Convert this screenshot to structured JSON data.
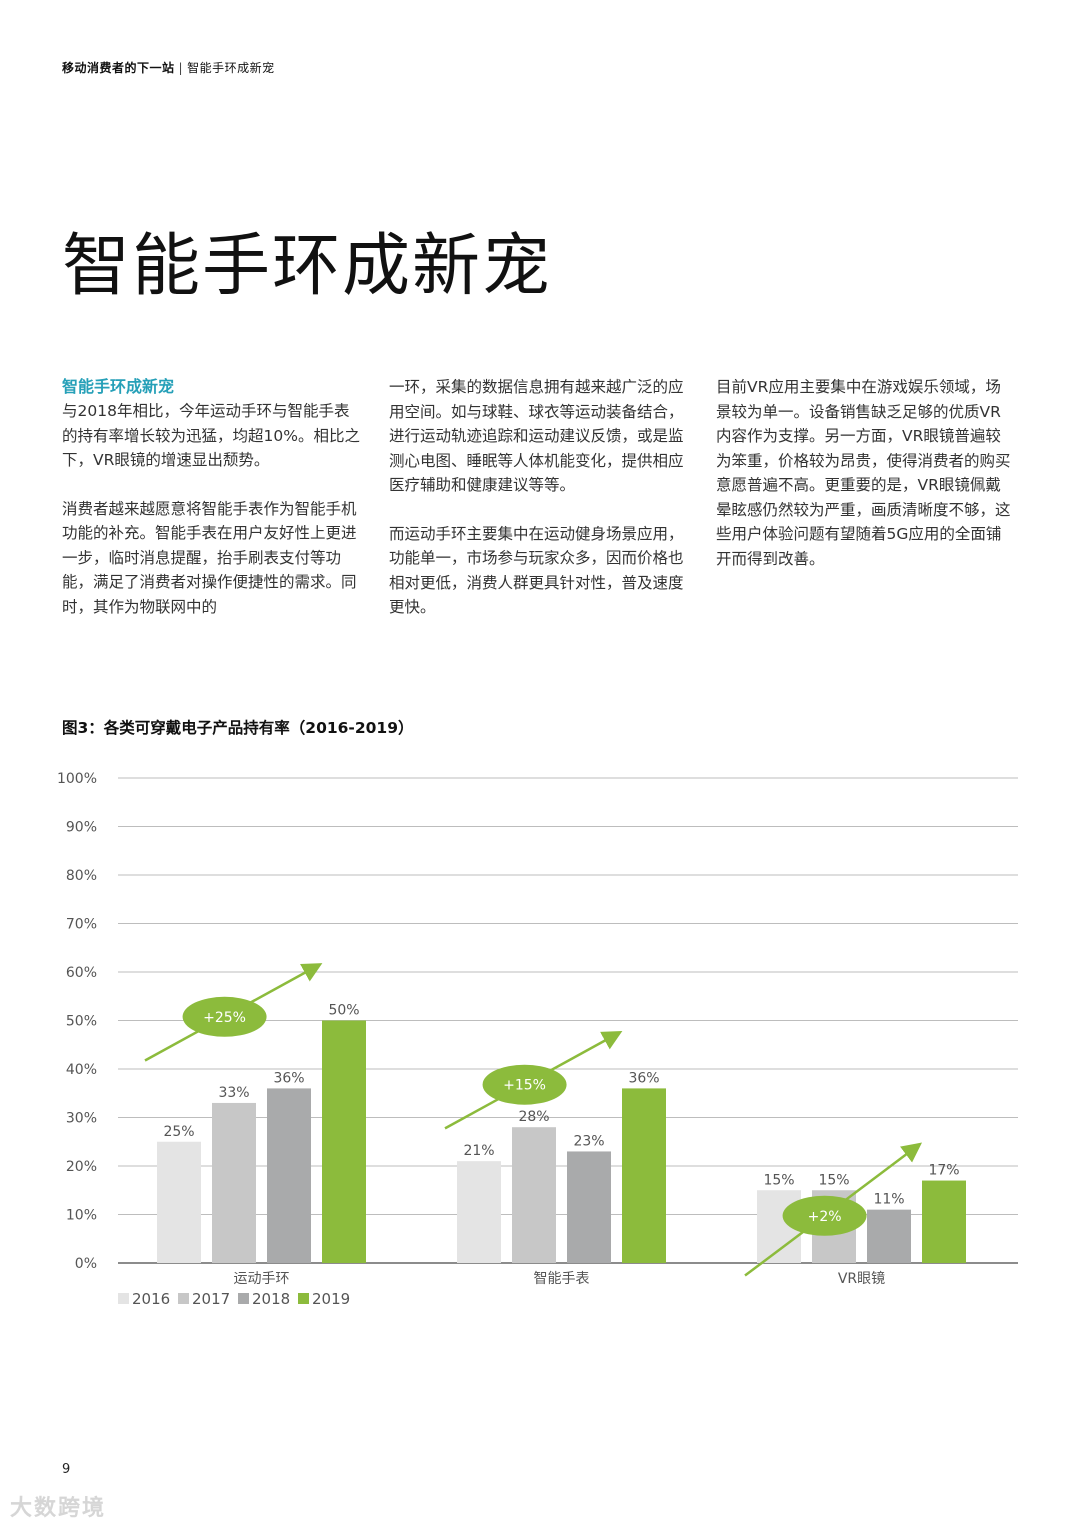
{
  "header": {
    "section": "移动消费者的下一站",
    "separator": "|",
    "topic": "智能手环成新宠"
  },
  "title": "智能手环成新宠",
  "subtitle": "智能手环成新宠",
  "col1": {
    "p1": "与2018年相比，今年运动手环与智能手表的持有率增长较为迅猛，均超10%。相比之下，VR眼镜的增速显出颓势。",
    "p2": "消费者越来越愿意将智能手表作为智能手机功能的补充。智能手表在用户友好性上更进一步，临时消息提醒，抬手刷表支付等功能，满足了消费者对操作便捷性的需求。同时，其作为物联网中的"
  },
  "col2": {
    "p1": "一环，采集的数据信息拥有越来越广泛的应用空间。如与球鞋、球衣等运动装备结合，进行运动轨迹追踪和运动建议反馈，或是监测心电图、睡眠等人体机能变化，提供相应医疗辅助和健康建议等等。",
    "p2": "而运动手环主要集中在运动健身场景应用，功能单一，市场参与玩家众多，因而价格也相对更低，消费人群更具针对性，普及速度更快。"
  },
  "col3": {
    "p1": "目前VR应用主要集中在游戏娱乐领域，场景较为单一。设备销售缺乏足够的优质VR内容作为支撑。另一方面，VR眼镜普遍较为笨重，价格较为昂贵，使得消费者的购买意愿普遍不高。更重要的是，VR眼镜佩戴晕眩感仍然较为严重，画质清晰度不够，这些用户体验问题有望随着5G应用的全面铺开而得到改善。"
  },
  "figure_title": "图3：各类可穿戴电子产品持有率（2016-2019）",
  "chart_data": {
    "type": "bar",
    "categories": [
      "运动手环",
      "智能手表",
      "VR眼镜"
    ],
    "series": [
      {
        "name": "2016",
        "values": [
          25,
          21,
          15
        ],
        "color": "#e4e4e4"
      },
      {
        "name": "2017",
        "values": [
          33,
          28,
          15
        ],
        "color": "#c7c7c7"
      },
      {
        "name": "2018",
        "values": [
          36,
          23,
          11
        ],
        "color": "#a9aaab"
      },
      {
        "name": "2019",
        "values": [
          50,
          36,
          17
        ],
        "color": "#8cbb3c"
      }
    ],
    "data_labels": [
      [
        "25%",
        "21%",
        "15%"
      ],
      [
        "33%",
        "28%",
        "15%"
      ],
      [
        "36%",
        "23%",
        "11%"
      ],
      [
        "50%",
        "36%",
        "17%"
      ]
    ],
    "y_ticks": [
      "0%",
      "10%",
      "20%",
      "30%",
      "40%",
      "50%",
      "60%",
      "70%",
      "80%",
      "90%",
      "100%"
    ],
    "ylim": [
      0,
      100
    ],
    "grid": true,
    "legend_position": "bottom-left",
    "growth_annotations": [
      "+25%",
      "+15%",
      "+2%"
    ],
    "accent_color": "#8cbb3c"
  },
  "page_number": "9",
  "watermark": "大数跨境"
}
